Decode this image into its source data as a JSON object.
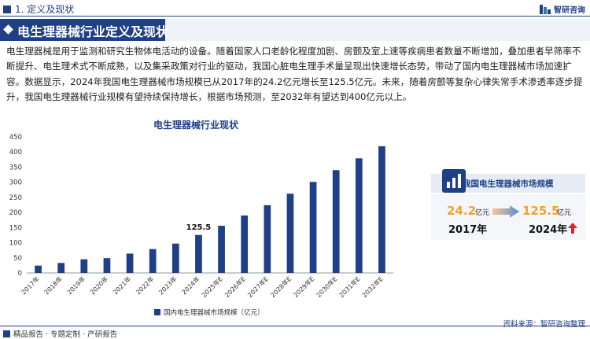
{
  "header": {
    "section": "1. 定义及现状",
    "brand": "智研咨询"
  },
  "title": "电生理器械行业定义及现状",
  "paragraph": "电生理器械是用于监测和研究生物体电活动的设备。随着国家人口老龄化程度加剧、房颤及室上速等疾病患者数量不断增加，叠加患者早筛率不断提升、电生理术式不断成熟，以及集采政策对行业的驱动，我国心脏电生理手术量呈现出快速增长态势，带动了国内电生理器械市场加速扩容。数据显示，2024年我国电生理器械市场规模已从2017年的24.2亿元增长至125.5亿元。未来，随着房颤等复杂心律失常手术渗透率逐步提升，我国电生理器械行业规模有望持续保持增长，根据市场预测，至2032年有望达到400亿元以上。",
  "chart_data": {
    "type": "bar",
    "title": "电生理器械行业现状",
    "categories": [
      "2017年",
      "2018年",
      "2019年",
      "2020年",
      "2021年",
      "2022年",
      "2023年",
      "2024年",
      "2025年E",
      "2026年E",
      "2027年E",
      "2028年E",
      "2029年E",
      "2030年E",
      "2031年E",
      "2032年E"
    ],
    "series": [
      {
        "name": "国内电生理器械市场规模（亿元）",
        "values": [
          24.2,
          33,
          45,
          49,
          64,
          79,
          97,
          125.5,
          156,
          190,
          224,
          262,
          301,
          340,
          379,
          419
        ]
      }
    ],
    "ylim": [
      0,
      450
    ],
    "yticks": [
      0,
      50,
      100,
      150,
      200,
      250,
      300,
      350,
      400,
      450
    ],
    "annotation": {
      "index": 7,
      "label": "125.5"
    },
    "bar_color": "#1f3f86",
    "grid": false,
    "legend_position": "bottom"
  },
  "panel": {
    "title": "我国电生理器械市场规模",
    "start_value": "24.2",
    "start_unit": "亿元",
    "start_year": "2017年",
    "end_value": "125.5",
    "end_unit": "亿元",
    "end_year": "2024年",
    "accent_color": "#f0a22e",
    "up_arrow_color": "#d9262c"
  },
  "footer": {
    "left": "精品报告 · 专题定制 · 产研报告",
    "right": "资料来源：智研咨询整理"
  }
}
